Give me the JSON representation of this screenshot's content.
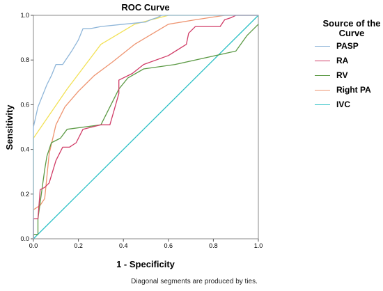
{
  "chart_data": {
    "type": "line",
    "title": "ROC Curve",
    "xlabel": "1 - Specificity",
    "ylabel": "Sensitivity",
    "xlim": [
      0,
      1
    ],
    "ylim": [
      0,
      1
    ],
    "x_ticks": [
      "0.0",
      "0.2",
      "0.4",
      "0.6",
      "0.8",
      "1.0"
    ],
    "y_ticks": [
      "0.0",
      "0.2",
      "0.4",
      "0.6",
      "0.8",
      "1.0"
    ],
    "grid": false,
    "legend_title": "Source of the Curve",
    "legend_position": "right",
    "footnote": "Diagonal segments are produced by ties.",
    "series": [
      {
        "name": "PASP",
        "color": "#8fb6d9",
        "x": [
          0,
          0,
          0.02,
          0.04,
          0.06,
          0.08,
          0.1,
          0.13,
          0.17,
          0.2,
          0.22,
          0.25,
          0.3,
          0.4,
          0.5,
          0.52,
          0.55,
          0.57,
          1.0
        ],
        "y": [
          0,
          0.5,
          0.59,
          0.64,
          0.69,
          0.73,
          0.78,
          0.78,
          0.84,
          0.89,
          0.94,
          0.94,
          0.95,
          0.96,
          0.97,
          0.98,
          0.99,
          1.0,
          1.0
        ]
      },
      {
        "name": "RA",
        "color": "#d03b66",
        "x": [
          0,
          0,
          0.02,
          0.03,
          0.05,
          0.07,
          0.1,
          0.13,
          0.16,
          0.19,
          0.22,
          0.3,
          0.34,
          0.36,
          0.38,
          0.38,
          0.44,
          0.49,
          0.6,
          0.68,
          0.69,
          0.72,
          0.83,
          0.85,
          0.88,
          0.9,
          1.0
        ],
        "y": [
          0,
          0.09,
          0.09,
          0.22,
          0.23,
          0.25,
          0.35,
          0.41,
          0.41,
          0.43,
          0.49,
          0.51,
          0.51,
          0.58,
          0.65,
          0.71,
          0.74,
          0.78,
          0.82,
          0.87,
          0.92,
          0.95,
          0.95,
          0.98,
          0.99,
          1.0,
          1.0
        ]
      },
      {
        "name": "RV",
        "color": "#5c9a45",
        "x": [
          0,
          0,
          0.02,
          0.02,
          0.05,
          0.06,
          0.08,
          0.12,
          0.15,
          0.3,
          0.38,
          0.42,
          0.49,
          0.63,
          0.9,
          0.95,
          1.0
        ],
        "y": [
          0,
          0.02,
          0.02,
          0.09,
          0.31,
          0.37,
          0.43,
          0.45,
          0.49,
          0.51,
          0.67,
          0.72,
          0.76,
          0.78,
          0.84,
          0.91,
          0.96
        ]
      },
      {
        "name": "Right PA",
        "color": "#ee9470",
        "x": [
          0,
          0,
          0.03,
          0.05,
          0.07,
          0.1,
          0.14,
          0.2,
          0.27,
          0.35,
          0.45,
          0.6,
          0.72,
          0.85,
          1.0
        ],
        "y": [
          0,
          0.13,
          0.15,
          0.18,
          0.38,
          0.51,
          0.59,
          0.66,
          0.73,
          0.79,
          0.87,
          0.96,
          0.98,
          1.0,
          1.0
        ]
      },
      {
        "name": "IVC",
        "color": "#2cc0c6",
        "x": [
          0,
          1
        ],
        "y": [
          0,
          1
        ]
      },
      {
        "name": "",
        "color": "#f2e155",
        "x": [
          0,
          0,
          0.15,
          0.3,
          0.45,
          0.6,
          1.0
        ],
        "y": [
          0,
          0.45,
          0.67,
          0.87,
          0.96,
          1.0,
          1.0
        ]
      }
    ]
  }
}
